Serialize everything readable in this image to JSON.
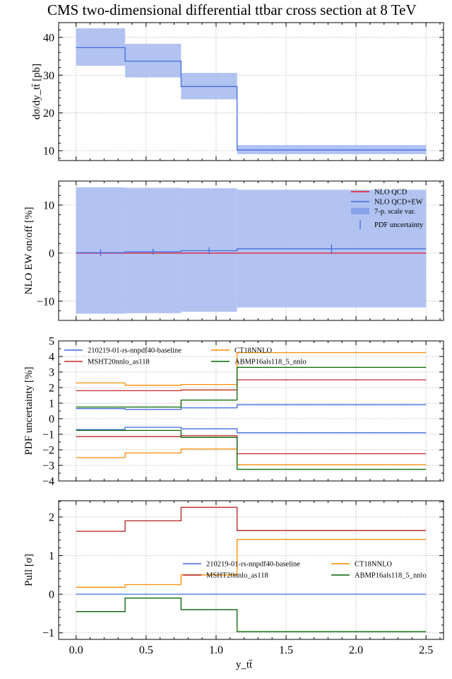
{
  "chart_data": [
    {
      "type": "line",
      "step": true,
      "title": "CMS two-dimensional differential ttbar cross section at 8 TeV",
      "ylabel": "dσ/dy_tt̄ [pb]",
      "xlim": [
        -0.125,
        2.625
      ],
      "ylim": [
        7.4,
        43.9
      ],
      "yticks": [
        10,
        20,
        30,
        40
      ],
      "ytick_labels": [
        "10",
        "20",
        "30",
        "40"
      ],
      "grid": true,
      "bin_edges": [
        0,
        0.35,
        0.75,
        1.15,
        2.5
      ],
      "series": [
        {
          "values": [
            37.3,
            33.7,
            27.0,
            10.2
          ],
          "color": "#4169e1",
          "band_low": [
            32.5,
            29.4,
            23.6,
            9.1
          ],
          "band_high": [
            42.4,
            38.3,
            30.6,
            11.5
          ],
          "band_color": "#aabcf0"
        }
      ]
    },
    {
      "type": "line",
      "step": true,
      "ylabel": "NLO EW on/off [%]",
      "xlim": [
        -0.125,
        2.625
      ],
      "ylim": [
        -14,
        15
      ],
      "yticks": [
        -10,
        0,
        10
      ],
      "ytick_labels": [
        "−10",
        "0",
        "10"
      ],
      "grid": true,
      "legend_position": "top-right",
      "bin_edges": [
        0,
        0.35,
        0.75,
        1.15,
        2.5
      ],
      "band": {
        "name": "7-p. scale var.",
        "low": [
          -12.6,
          -12.5,
          -12.2,
          -11.3
        ],
        "high": [
          13.7,
          13.6,
          13.5,
          13.2
        ],
        "color": "#aabcf0"
      },
      "series": [
        {
          "name": "NLO QCD",
          "values": [
            0,
            0,
            0,
            0
          ],
          "color": "#e8102c"
        },
        {
          "name": "NLO QCD+EW",
          "values": [
            0.1,
            0.3,
            0.5,
            0.9
          ],
          "color": "#4169e1"
        }
      ],
      "errorbars": {
        "name": "PDF uncertainty",
        "x": [
          0.175,
          0.55,
          0.95,
          1.825
        ],
        "y": [
          0.1,
          0.3,
          0.5,
          0.9
        ],
        "err": [
          0.7,
          0.6,
          0.7,
          0.9
        ],
        "color": "#4169e1"
      }
    },
    {
      "type": "line",
      "step": true,
      "ylabel": "PDF uncertainty [%]",
      "xlim": [
        -0.125,
        2.625
      ],
      "ylim": [
        -4,
        5
      ],
      "yticks": [
        -4,
        -3,
        -2,
        -1,
        0,
        1,
        2,
        3,
        4,
        5
      ],
      "ytick_labels": [
        "−4",
        "−3",
        "−2",
        "−1",
        "0",
        "1",
        "2",
        "3",
        "4",
        "5"
      ],
      "grid": true,
      "legend_position": "top-left",
      "bin_edges": [
        0,
        0.35,
        0.75,
        1.15,
        2.5
      ],
      "series": [
        {
          "name": "210219-01-rs-nnpdf40-baseline",
          "color": "#4169e1",
          "upper": [
            0.65,
            0.6,
            0.7,
            0.9
          ],
          "lower": [
            -0.7,
            -0.55,
            -0.65,
            -0.9
          ]
        },
        {
          "name": "MSHT20nnlo_as118",
          "color": "#c0282a",
          "upper": [
            1.8,
            1.8,
            1.85,
            2.5
          ],
          "lower": [
            -1.15,
            -1.15,
            -1.1,
            -2.25
          ]
        },
        {
          "name": "CT18NNLO",
          "color": "#ff8c00",
          "upper": [
            2.3,
            2.15,
            2.2,
            4.25
          ],
          "lower": [
            -2.5,
            -2.2,
            -1.95,
            -2.95
          ]
        },
        {
          "name": "ABMP16als118_5_nnlo",
          "color": "#006400",
          "upper": [
            0.75,
            0.75,
            1.2,
            3.3
          ],
          "lower": [
            -0.75,
            -0.75,
            -1.2,
            -3.25
          ]
        }
      ]
    },
    {
      "type": "line",
      "step": true,
      "ylabel": "Pull [σ]",
      "xlabel": "y_tt̄",
      "xlim": [
        -0.125,
        2.625
      ],
      "ylim": [
        -1.17,
        2.42
      ],
      "xticks": [
        0,
        0.5,
        1,
        1.5,
        2,
        2.5
      ],
      "xtick_labels": [
        "0.0",
        "0.5",
        "1.0",
        "1.5",
        "2.0",
        "2.5"
      ],
      "yticks": [
        -1,
        0,
        1,
        2
      ],
      "ytick_labels": [
        "−1",
        "0",
        "1",
        "2"
      ],
      "grid": true,
      "legend_position": "center-right",
      "bin_edges": [
        0,
        0.35,
        0.75,
        1.15,
        2.5
      ],
      "series": [
        {
          "name": "210219-01-rs-nnpdf40-baseline",
          "color": "#4169e1",
          "values": [
            0,
            0,
            0,
            0
          ]
        },
        {
          "name": "MSHT20nnlo_as118",
          "color": "#b01c1c",
          "values": [
            1.63,
            1.9,
            2.25,
            1.65
          ]
        },
        {
          "name": "CT18NNLO",
          "color": "#ff8c00",
          "values": [
            0.18,
            0.25,
            0.5,
            1.42
          ]
        },
        {
          "name": "ABMP16als118_5_nnlo",
          "color": "#006400",
          "values": [
            -0.45,
            -0.1,
            -0.4,
            -0.97
          ]
        }
      ]
    }
  ]
}
